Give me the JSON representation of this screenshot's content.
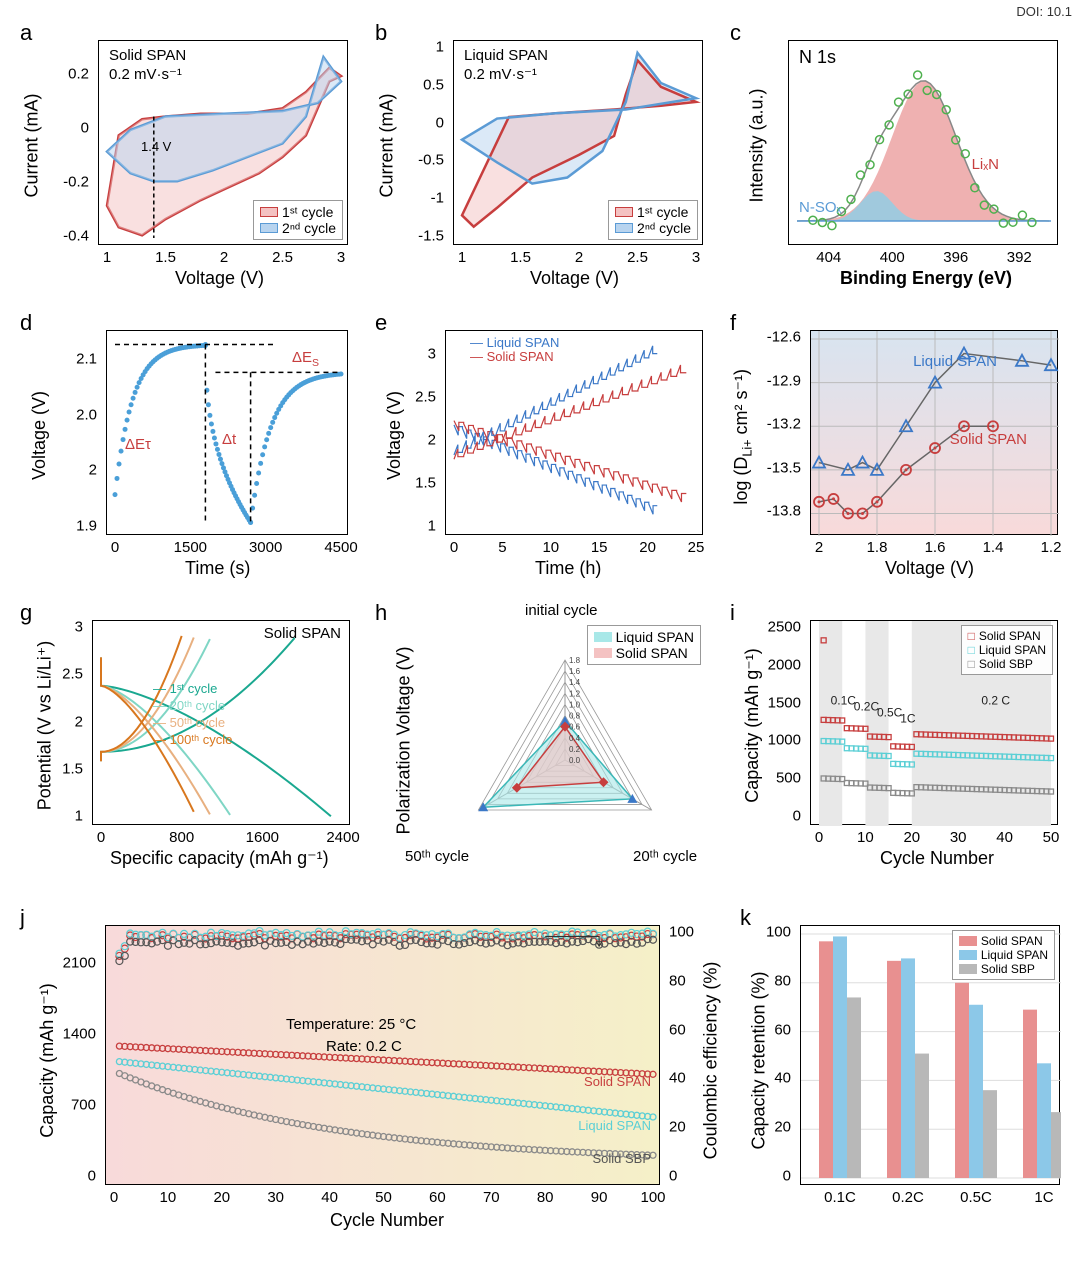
{
  "doi": "DOI: 10.1",
  "colors": {
    "red": "#c73e3e",
    "blue": "#5b9bd5",
    "blue_dark": "#3b78c7",
    "teal": "#1aa890",
    "teal_light": "#7fd6c5",
    "orange": "#e8972e",
    "orange_dark": "#d8771e",
    "gray": "#8a8a8a",
    "green_marker": "#4eb04e",
    "cyan": "#5bcfd5",
    "pink_fill": "#f4c2c2",
    "blue_fill": "#b8d4ef",
    "grad_pink": "#f8dada",
    "grad_blue": "#d8e4f0",
    "grad_yellow": "#f5f0c8",
    "grid": "#cccccc",
    "black": "#000000"
  },
  "panel_a": {
    "label": "a",
    "title_1": "Solid SPAN",
    "title_2": "0.2 mV·s⁻¹",
    "xlabel": "Voltage (V)",
    "ylabel": "Current (mA)",
    "xlim": [
      1.0,
      3.0
    ],
    "xticks": [
      1.0,
      1.5,
      2.0,
      2.5,
      3.0
    ],
    "ylim": [
      -0.4,
      0.3
    ],
    "yticks": [
      -0.4,
      -0.2,
      0.0,
      0.2
    ],
    "vline": 1.4,
    "vline_label": "1.4 V",
    "legend": [
      "1ˢᵗ cycle",
      "2ⁿᵈ cycle"
    ],
    "series": {
      "cycle1": [
        [
          1.0,
          -0.28
        ],
        [
          1.1,
          -0.36
        ],
        [
          1.3,
          -0.39
        ],
        [
          1.5,
          -0.33
        ],
        [
          1.8,
          -0.26
        ],
        [
          2.0,
          -0.22
        ],
        [
          2.3,
          -0.16
        ],
        [
          2.5,
          -0.1
        ],
        [
          2.7,
          -0.02
        ],
        [
          2.9,
          0.18
        ],
        [
          3.0,
          0.2
        ],
        [
          2.9,
          0.23
        ],
        [
          2.7,
          0.14
        ],
        [
          2.5,
          0.08
        ],
        [
          2.2,
          0.06
        ],
        [
          1.8,
          0.06
        ],
        [
          1.5,
          0.05
        ],
        [
          1.3,
          0.04
        ],
        [
          1.1,
          -0.02
        ],
        [
          1.0,
          -0.28
        ]
      ],
      "cycle2": [
        [
          1.0,
          -0.08
        ],
        [
          1.2,
          -0.16
        ],
        [
          1.4,
          -0.19
        ],
        [
          1.6,
          -0.19
        ],
        [
          1.9,
          -0.15
        ],
        [
          2.2,
          -0.1
        ],
        [
          2.5,
          -0.05
        ],
        [
          2.7,
          0.05
        ],
        [
          2.85,
          0.27
        ],
        [
          3.0,
          0.18
        ],
        [
          2.8,
          0.1
        ],
        [
          2.5,
          0.07
        ],
        [
          2.0,
          0.06
        ],
        [
          1.5,
          0.05
        ],
        [
          1.2,
          0.0
        ],
        [
          1.0,
          -0.08
        ]
      ]
    }
  },
  "panel_b": {
    "label": "b",
    "title_1": "Liquid SPAN",
    "title_2": "0.2 mV·s⁻¹",
    "xlabel": "Voltage (V)",
    "ylabel": "Current (mA)",
    "xlim": [
      1.0,
      3.0
    ],
    "xticks": [
      1.0,
      1.5,
      2.0,
      2.5,
      3.0
    ],
    "ylim": [
      -1.5,
      1.0
    ],
    "yticks": [
      -1.5,
      -1.0,
      -0.5,
      0.0,
      0.5,
      1.0
    ],
    "legend": [
      "1ˢᵗ cycle",
      "2ⁿᵈ cycle"
    ],
    "series": {
      "cycle1": [
        [
          1.0,
          -1.2
        ],
        [
          1.1,
          -1.35
        ],
        [
          1.3,
          -1.1
        ],
        [
          1.6,
          -0.7
        ],
        [
          2.0,
          -0.4
        ],
        [
          2.3,
          -0.15
        ],
        [
          2.4,
          0.4
        ],
        [
          2.5,
          0.85
        ],
        [
          2.7,
          0.5
        ],
        [
          3.0,
          0.3
        ],
        [
          2.7,
          0.25
        ],
        [
          2.3,
          0.2
        ],
        [
          1.8,
          0.15
        ],
        [
          1.4,
          0.1
        ],
        [
          1.0,
          -1.2
        ]
      ],
      "cycle2": [
        [
          1.0,
          -0.2
        ],
        [
          1.3,
          -0.5
        ],
        [
          1.6,
          -0.78
        ],
        [
          1.9,
          -0.7
        ],
        [
          2.2,
          -0.35
        ],
        [
          2.4,
          0.3
        ],
        [
          2.5,
          0.95
        ],
        [
          2.7,
          0.55
        ],
        [
          3.0,
          0.35
        ],
        [
          2.4,
          0.2
        ],
        [
          1.8,
          0.15
        ],
        [
          1.3,
          0.08
        ],
        [
          1.0,
          -0.2
        ]
      ]
    }
  },
  "panel_c": {
    "label": "c",
    "title": "N 1s",
    "xlabel": "Binding Energy  (eV)",
    "ylabel": "Intensity (a.u.)",
    "xlim": [
      406,
      390
    ],
    "xticks": [
      404,
      400,
      396,
      392
    ],
    "annotations": {
      "LixN": "LiₓN",
      "NSOx": "N-SOₓ"
    },
    "peak1_center": 398,
    "peak1_width": 4,
    "peak1_color": "#e89090",
    "peak2_center": 401,
    "peak2_width": 2,
    "peak2_color": "#8cd0e8"
  },
  "panel_d": {
    "label": "d",
    "xlabel": "Time (s)",
    "ylabel": "Voltage (V)",
    "xlim": [
      0,
      4500
    ],
    "xticks": [
      0,
      1500,
      3000,
      4500
    ],
    "ylim": [
      1.95,
      2.12
    ],
    "yticks": [
      1.95,
      2.0,
      2.05,
      2.1
    ],
    "annotations": {
      "dEs": "ΔE_S",
      "dEt": "ΔEτ",
      "dt": "Δt"
    }
  },
  "panel_e": {
    "label": "e",
    "xlabel": "Time (h)",
    "ylabel": "Voltage (V)",
    "xlim": [
      0,
      25
    ],
    "xticks": [
      0,
      5,
      10,
      15,
      20,
      25
    ],
    "ylim": [
      1.0,
      3.2
    ],
    "yticks": [
      1.0,
      1.5,
      2.0,
      2.5,
      3.0
    ],
    "legend": {
      "liquid": "Liquid SPAN",
      "solid": "Solid SPAN"
    }
  },
  "panel_f": {
    "label": "f",
    "xlabel": "Voltage (V)",
    "ylabel": "log (D_Li+ cm² s⁻¹)",
    "xlim": [
      2.0,
      1.2
    ],
    "xticks": [
      2.0,
      1.8,
      1.6,
      1.4,
      1.2
    ],
    "ylim": [
      -13.9,
      -12.6
    ],
    "yticks": [
      -13.8,
      -13.5,
      -13.2,
      -12.9,
      -12.6
    ],
    "legend": {
      "liquid": "Liquid SPAN",
      "solid": "Solid SPAN"
    },
    "liquid": [
      [
        2.0,
        -13.45
      ],
      [
        1.9,
        -13.5
      ],
      [
        1.85,
        -13.45
      ],
      [
        1.8,
        -13.5
      ],
      [
        1.7,
        -13.2
      ],
      [
        1.6,
        -12.9
      ],
      [
        1.5,
        -12.7
      ],
      [
        1.3,
        -12.75
      ],
      [
        1.2,
        -12.78
      ]
    ],
    "solid": [
      [
        2.0,
        -13.72
      ],
      [
        1.95,
        -13.7
      ],
      [
        1.9,
        -13.8
      ],
      [
        1.85,
        -13.8
      ],
      [
        1.8,
        -13.72
      ],
      [
        1.7,
        -13.5
      ],
      [
        1.6,
        -13.35
      ],
      [
        1.5,
        -13.2
      ],
      [
        1.4,
        -13.2
      ]
    ]
  },
  "panel_g": {
    "label": "g",
    "title": "Solid SPAN",
    "xlabel": "Specific capacity (mAh g⁻¹)",
    "ylabel": "Potential (V vs Li/Li⁺)",
    "xlim": [
      0,
      2400
    ],
    "xticks": [
      0,
      800,
      1600,
      2400
    ],
    "ylim": [
      1.0,
      3.0
    ],
    "yticks": [
      1.0,
      1.5,
      2.0,
      2.5,
      3.0
    ],
    "legend": [
      "1ˢᵗ cycle",
      "20ᵗʰ cycle",
      "50ᵗʰ cycle",
      "100ᵗʰ cycle"
    ],
    "legend_colors": [
      "#1aa890",
      "#7fd6c5",
      "#e8b080",
      "#d8771e"
    ]
  },
  "panel_h": {
    "label": "h",
    "ylabel": "Polarization Voltage (V)",
    "vertices": [
      "initial cycle",
      "20ᵗʰ cycle",
      "50ᵗʰ cycle"
    ],
    "rings": [
      0.0,
      0.2,
      0.4,
      0.6,
      0.8,
      1.0,
      1.2,
      1.4,
      1.6,
      1.8
    ],
    "legend": {
      "liquid": "Liquid SPAN",
      "solid": "Solid SPAN"
    },
    "liquid_vals": [
      0.7,
      1.4,
      1.7
    ],
    "solid_vals": [
      0.6,
      0.8,
      1.0
    ]
  },
  "panel_i": {
    "label": "i",
    "xlabel": "Cycle Number",
    "ylabel": "Capacity (mAh g⁻¹)",
    "xlim": [
      0,
      50
    ],
    "xticks": [
      0,
      10,
      20,
      30,
      40,
      50
    ],
    "ylim": [
      0,
      2500
    ],
    "yticks": [
      0,
      500,
      1000,
      1500,
      2000,
      2500
    ],
    "legend": {
      "solid": "Solid SPAN",
      "liquid": "Liquid SPAN",
      "sbp": "Solid SBP"
    },
    "rate_labels": [
      "0.1C",
      "0.2C",
      "0.5C",
      "1C",
      "0.2 C"
    ],
    "rate_x": [
      2.5,
      7.5,
      12.5,
      17.5,
      35
    ]
  },
  "panel_j": {
    "label": "j",
    "xlabel": "Cycle Number",
    "ylabel": "Capacity (mAh g⁻¹)",
    "ylabel2": "Coulombic efficiency (%)",
    "xlim": [
      0,
      100
    ],
    "xticks": [
      0,
      10,
      20,
      30,
      40,
      50,
      60,
      70,
      80,
      90,
      100
    ],
    "ylim": [
      0,
      2400
    ],
    "yticks": [
      0,
      700,
      1400,
      2100
    ],
    "ylim2": [
      0,
      100
    ],
    "yticks2": [
      0,
      20,
      40,
      60,
      80,
      100
    ],
    "temp": "Temperature: 25 °C",
    "rate": "Rate: 0.2 C",
    "legend": {
      "solid": "Solid SPAN",
      "liquid": "Liquid SPAN",
      "sbp": "Solid SBP"
    }
  },
  "panel_k": {
    "label": "k",
    "xlabel_cats": [
      "0.1C",
      "0.2C",
      "0.5C",
      "1C"
    ],
    "ylabel": "Capacity retention (%)",
    "ylim": [
      0,
      100
    ],
    "yticks": [
      0,
      20,
      40,
      60,
      80,
      100
    ],
    "legend": {
      "solid": "Solid SPAN",
      "liquid": "Liquid SPAN",
      "sbp": "Solid SBP"
    },
    "solid": [
      97,
      89,
      80,
      69
    ],
    "liquid": [
      99,
      90,
      71,
      47
    ],
    "sbp": [
      74,
      51,
      36,
      27
    ]
  }
}
